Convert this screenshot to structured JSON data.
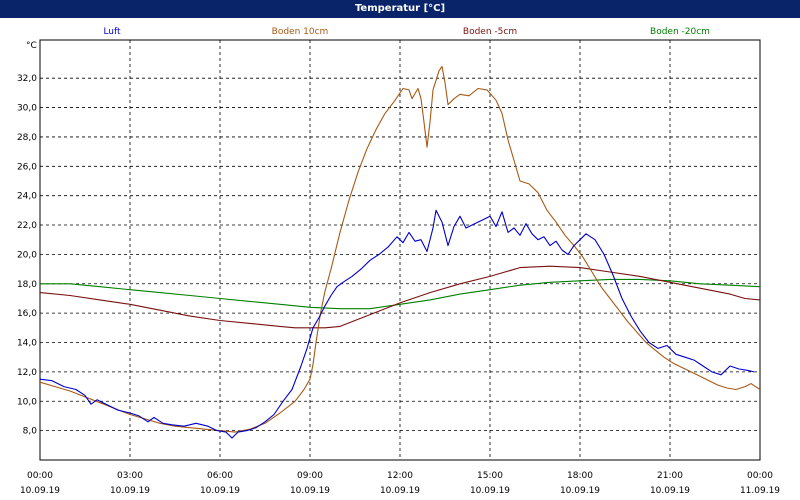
{
  "window": {
    "title": "Temperatur [°C]"
  },
  "chart_data": {
    "type": "line",
    "title": "Temperatur [°C]",
    "ylabel": "°C",
    "xlabel": "",
    "ylim": [
      6.0,
      34.6
    ],
    "xlim_hours": [
      0,
      24
    ],
    "grid": true,
    "legend_position": "top",
    "yticks": [
      "32,0",
      "30,0",
      "28,0",
      "26,0",
      "24,0",
      "22,0",
      "20,0",
      "18,0",
      "16,0",
      "14,0",
      "12,0",
      "10,0",
      "8,0"
    ],
    "xticks": [
      {
        "time": "00:00",
        "date": "10.09.19"
      },
      {
        "time": "03:00",
        "date": "10.09.19"
      },
      {
        "time": "06:00",
        "date": "10.09.19"
      },
      {
        "time": "09:00",
        "date": "10.09.19"
      },
      {
        "time": "12:00",
        "date": "10.09.19"
      },
      {
        "time": "15:00",
        "date": "10.09.19"
      },
      {
        "time": "18:00",
        "date": "10.09.19"
      },
      {
        "time": "21:00",
        "date": "10.09.19"
      },
      {
        "time": "00:00",
        "date": "11.09.19"
      }
    ],
    "series": [
      {
        "name": "Luft",
        "color": "#0000cc",
        "points": [
          [
            0,
            11.5
          ],
          [
            0.4,
            11.4
          ],
          [
            0.8,
            11.0
          ],
          [
            1.2,
            10.8
          ],
          [
            1.5,
            10.4
          ],
          [
            1.7,
            9.8
          ],
          [
            1.9,
            10.1
          ],
          [
            2.2,
            9.8
          ],
          [
            2.6,
            9.4
          ],
          [
            3.0,
            9.2
          ],
          [
            3.3,
            9.0
          ],
          [
            3.6,
            8.6
          ],
          [
            3.8,
            8.9
          ],
          [
            4.1,
            8.5
          ],
          [
            4.4,
            8.4
          ],
          [
            4.8,
            8.3
          ],
          [
            5.2,
            8.5
          ],
          [
            5.6,
            8.3
          ],
          [
            5.9,
            8.0
          ],
          [
            6.2,
            7.9
          ],
          [
            6.4,
            7.5
          ],
          [
            6.6,
            7.9
          ],
          [
            6.9,
            8.0
          ],
          [
            7.2,
            8.2
          ],
          [
            7.5,
            8.6
          ],
          [
            7.8,
            9.1
          ],
          [
            8.1,
            10.0
          ],
          [
            8.4,
            10.8
          ],
          [
            8.7,
            12.4
          ],
          [
            8.9,
            13.6
          ],
          [
            9.1,
            15.0
          ],
          [
            9.3,
            15.7
          ],
          [
            9.5,
            16.5
          ],
          [
            9.7,
            17.2
          ],
          [
            9.9,
            17.8
          ],
          [
            10.1,
            18.1
          ],
          [
            10.4,
            18.5
          ],
          [
            10.7,
            19.0
          ],
          [
            11.0,
            19.6
          ],
          [
            11.3,
            20.0
          ],
          [
            11.6,
            20.5
          ],
          [
            11.9,
            21.2
          ],
          [
            12.1,
            20.8
          ],
          [
            12.3,
            21.5
          ],
          [
            12.5,
            20.9
          ],
          [
            12.7,
            21.0
          ],
          [
            12.9,
            20.2
          ],
          [
            13.1,
            21.8
          ],
          [
            13.2,
            23.0
          ],
          [
            13.4,
            22.2
          ],
          [
            13.6,
            20.6
          ],
          [
            13.8,
            21.9
          ],
          [
            14.0,
            22.6
          ],
          [
            14.2,
            21.8
          ],
          [
            14.4,
            22.0
          ],
          [
            14.6,
            22.2
          ],
          [
            14.8,
            22.4
          ],
          [
            15.0,
            22.6
          ],
          [
            15.2,
            21.9
          ],
          [
            15.4,
            22.9
          ],
          [
            15.6,
            21.5
          ],
          [
            15.8,
            21.8
          ],
          [
            16.0,
            21.3
          ],
          [
            16.2,
            22.1
          ],
          [
            16.4,
            21.4
          ],
          [
            16.6,
            21.0
          ],
          [
            16.8,
            21.2
          ],
          [
            17.0,
            20.6
          ],
          [
            17.2,
            20.9
          ],
          [
            17.4,
            20.3
          ],
          [
            17.6,
            20.0
          ],
          [
            17.8,
            20.6
          ],
          [
            18.0,
            21.0
          ],
          [
            18.2,
            21.4
          ],
          [
            18.5,
            21.0
          ],
          [
            18.8,
            20.0
          ],
          [
            19.1,
            18.6
          ],
          [
            19.4,
            17.0
          ],
          [
            19.7,
            15.8
          ],
          [
            20.0,
            14.8
          ],
          [
            20.3,
            14.0
          ],
          [
            20.6,
            13.6
          ],
          [
            20.9,
            13.8
          ],
          [
            21.2,
            13.2
          ],
          [
            21.5,
            13.0
          ],
          [
            21.8,
            12.8
          ],
          [
            22.1,
            12.4
          ],
          [
            22.4,
            12.0
          ],
          [
            22.7,
            11.8
          ],
          [
            23.0,
            12.4
          ],
          [
            23.3,
            12.2
          ],
          [
            23.6,
            12.1
          ],
          [
            23.8,
            12.0
          ]
        ]
      },
      {
        "name": "Boden 10cm",
        "color": "#a85a14",
        "points": [
          [
            0,
            11.3
          ],
          [
            0.5,
            11.0
          ],
          [
            1.0,
            10.7
          ],
          [
            1.5,
            10.3
          ],
          [
            2.0,
            9.9
          ],
          [
            2.5,
            9.5
          ],
          [
            3.0,
            9.1
          ],
          [
            3.5,
            8.8
          ],
          [
            4.0,
            8.5
          ],
          [
            4.5,
            8.3
          ],
          [
            5.0,
            8.2
          ],
          [
            5.5,
            8.1
          ],
          [
            6.0,
            8.0
          ],
          [
            6.5,
            7.9
          ],
          [
            7.0,
            8.1
          ],
          [
            7.5,
            8.5
          ],
          [
            8.0,
            9.2
          ],
          [
            8.5,
            10.0
          ],
          [
            8.8,
            10.8
          ],
          [
            9.0,
            11.5
          ],
          [
            9.1,
            12.5
          ],
          [
            9.2,
            14.0
          ],
          [
            9.35,
            16.0
          ],
          [
            9.5,
            17.5
          ],
          [
            9.7,
            19.0
          ],
          [
            10.0,
            21.5
          ],
          [
            10.3,
            23.7
          ],
          [
            10.6,
            25.6
          ],
          [
            10.9,
            27.2
          ],
          [
            11.2,
            28.5
          ],
          [
            11.5,
            29.6
          ],
          [
            11.8,
            30.4
          ],
          [
            12.0,
            31.0
          ],
          [
            12.1,
            31.3
          ],
          [
            12.3,
            31.2
          ],
          [
            12.4,
            30.6
          ],
          [
            12.6,
            31.3
          ],
          [
            12.7,
            30.6
          ],
          [
            12.8,
            29.0
          ],
          [
            12.9,
            27.3
          ],
          [
            13.0,
            29.0
          ],
          [
            13.1,
            31.2
          ],
          [
            13.3,
            32.5
          ],
          [
            13.4,
            32.8
          ],
          [
            13.5,
            31.7
          ],
          [
            13.6,
            30.2
          ],
          [
            13.8,
            30.6
          ],
          [
            14.0,
            30.9
          ],
          [
            14.3,
            30.8
          ],
          [
            14.6,
            31.3
          ],
          [
            14.9,
            31.2
          ],
          [
            15.2,
            30.5
          ],
          [
            15.4,
            29.6
          ],
          [
            15.6,
            27.8
          ],
          [
            15.8,
            26.4
          ],
          [
            16.0,
            25.0
          ],
          [
            16.3,
            24.8
          ],
          [
            16.6,
            24.2
          ],
          [
            16.9,
            23.0
          ],
          [
            17.2,
            22.2
          ],
          [
            17.5,
            21.3
          ],
          [
            17.8,
            20.6
          ],
          [
            18.1,
            19.8
          ],
          [
            18.4,
            18.8
          ],
          [
            18.7,
            17.8
          ],
          [
            19.0,
            17.0
          ],
          [
            19.3,
            16.2
          ],
          [
            19.6,
            15.4
          ],
          [
            19.9,
            14.7
          ],
          [
            20.2,
            14.0
          ],
          [
            20.5,
            13.5
          ],
          [
            20.8,
            13.0
          ],
          [
            21.1,
            12.6
          ],
          [
            21.4,
            12.3
          ],
          [
            21.7,
            12.0
          ],
          [
            22.0,
            11.7
          ],
          [
            22.3,
            11.4
          ],
          [
            22.6,
            11.1
          ],
          [
            22.9,
            10.9
          ],
          [
            23.2,
            10.8
          ],
          [
            23.5,
            11.0
          ],
          [
            23.7,
            11.2
          ],
          [
            24.0,
            10.8
          ]
        ]
      },
      {
        "name": "Boden -5cm",
        "color": "#7a1010",
        "points": [
          [
            0,
            17.4
          ],
          [
            1,
            17.2
          ],
          [
            2,
            16.9
          ],
          [
            3,
            16.6
          ],
          [
            4,
            16.2
          ],
          [
            5,
            15.8
          ],
          [
            6,
            15.5
          ],
          [
            7,
            15.3
          ],
          [
            8,
            15.1
          ],
          [
            8.5,
            15.0
          ],
          [
            9,
            15.0
          ],
          [
            9.5,
            15.0
          ],
          [
            10,
            15.1
          ],
          [
            10.5,
            15.5
          ],
          [
            11,
            15.9
          ],
          [
            12,
            16.7
          ],
          [
            13,
            17.4
          ],
          [
            14,
            18.0
          ],
          [
            15,
            18.5
          ],
          [
            16,
            19.1
          ],
          [
            17,
            19.2
          ],
          [
            18,
            19.1
          ],
          [
            19,
            18.8
          ],
          [
            20,
            18.5
          ],
          [
            21,
            18.1
          ],
          [
            22,
            17.7
          ],
          [
            23,
            17.3
          ],
          [
            23.5,
            17.0
          ],
          [
            24,
            16.9
          ]
        ]
      },
      {
        "name": "Boden -20cm",
        "color": "#008000",
        "points": [
          [
            0,
            18.0
          ],
          [
            1,
            18.0
          ],
          [
            2,
            17.8
          ],
          [
            3,
            17.6
          ],
          [
            4,
            17.4
          ],
          [
            5,
            17.2
          ],
          [
            6,
            17.0
          ],
          [
            7,
            16.8
          ],
          [
            8,
            16.6
          ],
          [
            9,
            16.4
          ],
          [
            10,
            16.3
          ],
          [
            11,
            16.3
          ],
          [
            12,
            16.6
          ],
          [
            13,
            16.9
          ],
          [
            14,
            17.3
          ],
          [
            15,
            17.6
          ],
          [
            16,
            17.9
          ],
          [
            17,
            18.1
          ],
          [
            18,
            18.2
          ],
          [
            19,
            18.3
          ],
          [
            20,
            18.3
          ],
          [
            21,
            18.2
          ],
          [
            22,
            18.0
          ],
          [
            23,
            17.9
          ],
          [
            24,
            17.8
          ]
        ]
      }
    ]
  }
}
